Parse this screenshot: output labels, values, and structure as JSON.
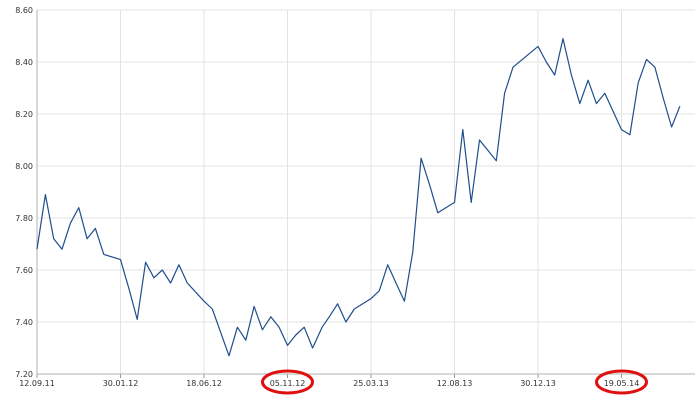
{
  "chart_data": {
    "type": "line",
    "title": "",
    "xlabel": "",
    "ylabel": "",
    "x_ticks": [
      "12.09.11",
      "30.01.12",
      "18.06.12",
      "05.11.12",
      "25.03.13",
      "12.08.13",
      "30.12.13",
      "19.05.14"
    ],
    "y_ticks": [
      "7.20",
      "7.40",
      "7.60",
      "7.80",
      "8.00",
      "8.20",
      "8.40",
      "8.60"
    ],
    "ylim": [
      7.2,
      8.6
    ],
    "xlim": [
      "12.09.11",
      "2014-09"
    ],
    "grid": true,
    "line_color": "#1f4e8c",
    "highlight_color": "#e01010",
    "highlighted_ticks": [
      "05.11.12",
      "19.05.14"
    ],
    "series": [
      {
        "points": [
          [
            "12.09.11",
            7.68
          ],
          [
            "2011-09-26",
            7.89
          ],
          [
            "2011-10-10",
            7.72
          ],
          [
            "2011-10-24",
            7.68
          ],
          [
            "2011-11-07",
            7.78
          ],
          [
            "2011-11-21",
            7.84
          ],
          [
            "2011-12-05",
            7.72
          ],
          [
            "2011-12-19",
            7.76
          ],
          [
            "2012-01-02",
            7.66
          ],
          [
            "30.01.12",
            7.64
          ],
          [
            "2012-02-13",
            7.53
          ],
          [
            "2012-02-27",
            7.41
          ],
          [
            "2012-03-12",
            7.63
          ],
          [
            "2012-03-26",
            7.57
          ],
          [
            "2012-04-09",
            7.6
          ],
          [
            "2012-04-23",
            7.55
          ],
          [
            "2012-05-07",
            7.62
          ],
          [
            "2012-05-21",
            7.55
          ],
          [
            "18.06.12",
            7.48
          ],
          [
            "2012-07-02",
            7.45
          ],
          [
            "2012-07-16",
            7.36
          ],
          [
            "2012-07-30",
            7.27
          ],
          [
            "2012-08-13",
            7.38
          ],
          [
            "2012-08-27",
            7.33
          ],
          [
            "2012-09-10",
            7.46
          ],
          [
            "2012-09-24",
            7.37
          ],
          [
            "2012-10-08",
            7.42
          ],
          [
            "2012-10-22",
            7.38
          ],
          [
            "05.11.12",
            7.31
          ],
          [
            "2012-11-19",
            7.35
          ],
          [
            "2012-12-03",
            7.38
          ],
          [
            "2012-12-17",
            7.3
          ],
          [
            "2013-01-02",
            7.38
          ],
          [
            "2013-01-14",
            7.42
          ],
          [
            "2013-01-28",
            7.47
          ],
          [
            "2013-02-11",
            7.4
          ],
          [
            "2013-02-25",
            7.45
          ],
          [
            "25.03.13",
            7.49
          ],
          [
            "2013-04-08",
            7.52
          ],
          [
            "2013-04-22",
            7.62
          ],
          [
            "2013-05-06",
            7.55
          ],
          [
            "2013-05-20",
            7.48
          ],
          [
            "2013-06-03",
            7.67
          ],
          [
            "2013-06-17",
            8.03
          ],
          [
            "2013-07-01",
            7.93
          ],
          [
            "2013-07-15",
            7.82
          ],
          [
            "12.08.13",
            7.86
          ],
          [
            "2013-08-26",
            8.14
          ],
          [
            "2013-09-09",
            7.86
          ],
          [
            "2013-09-23",
            8.1
          ],
          [
            "2013-10-07",
            8.06
          ],
          [
            "2013-10-21",
            8.02
          ],
          [
            "2013-11-04",
            8.28
          ],
          [
            "2013-11-18",
            8.38
          ],
          [
            "30.12.13",
            8.46
          ],
          [
            "2014-01-13",
            8.4
          ],
          [
            "2014-01-27",
            8.35
          ],
          [
            "2014-02-10",
            8.49
          ],
          [
            "2014-02-24",
            8.35
          ],
          [
            "2014-03-10",
            8.24
          ],
          [
            "2014-03-24",
            8.33
          ],
          [
            "2014-04-07",
            8.24
          ],
          [
            "2014-04-21",
            8.28
          ],
          [
            "19.05.14",
            8.14
          ],
          [
            "2014-06-02",
            8.12
          ],
          [
            "2014-06-16",
            8.32
          ],
          [
            "2014-06-30",
            8.41
          ],
          [
            "2014-07-14",
            8.38
          ],
          [
            "2014-07-28",
            8.26
          ],
          [
            "2014-08-11",
            8.15
          ],
          [
            "2014-08-25",
            8.23
          ]
        ]
      }
    ]
  }
}
